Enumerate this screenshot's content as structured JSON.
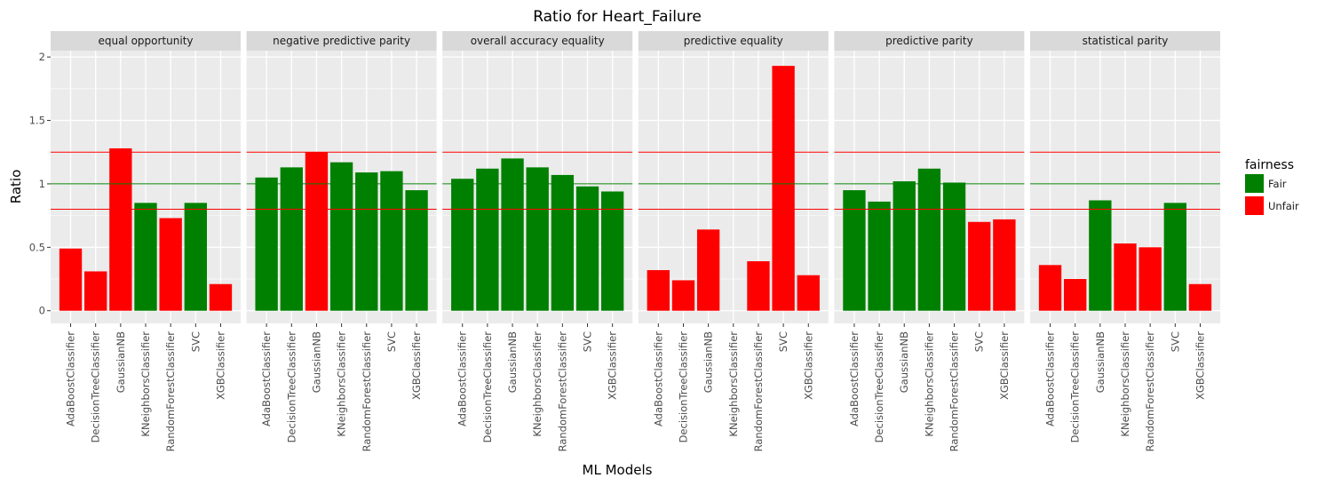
{
  "chart_data": {
    "type": "bar",
    "title": "Ratio for Heart_Failure",
    "xlabel": "ML Models",
    "ylabel": "Ratio",
    "ylim": [
      -0.1,
      2.05
    ],
    "yticks": [
      0,
      0.5,
      1,
      1.5,
      2
    ],
    "ytick_labels": [
      "0",
      "0.5",
      "1",
      "1.5",
      "2"
    ],
    "grid": true,
    "categories": [
      "AdaBoostClassifier",
      "DecisionTreeClassifier",
      "GaussianNB",
      "KNeighborsClassifier",
      "RandomForestClassifier",
      "SVC",
      "XGBClassifier"
    ],
    "reference_lines": [
      {
        "value": 1.25,
        "color": "#ff0000"
      },
      {
        "value": 1.0,
        "color": "#008000"
      },
      {
        "value": 0.8,
        "color": "#ff0000"
      }
    ],
    "legend": {
      "title": "fairness",
      "position": "right",
      "entries": [
        {
          "label": "Fair",
          "color": "#008000"
        },
        {
          "label": "Unfair",
          "color": "#ff0000"
        }
      ]
    },
    "panels": [
      {
        "name": "equal opportunity",
        "values": [
          0.49,
          0.31,
          1.28,
          0.85,
          0.73,
          0.85,
          0.21
        ],
        "fairness": [
          "Unfair",
          "Unfair",
          "Unfair",
          "Fair",
          "Unfair",
          "Fair",
          "Unfair"
        ]
      },
      {
        "name": "negative predictive parity",
        "values": [
          1.05,
          1.13,
          1.25,
          1.17,
          1.09,
          1.1,
          0.95
        ],
        "fairness": [
          "Fair",
          "Fair",
          "Unfair",
          "Fair",
          "Fair",
          "Fair",
          "Fair"
        ]
      },
      {
        "name": "overall accuracy equality",
        "values": [
          1.04,
          1.12,
          1.2,
          1.13,
          1.07,
          0.98,
          0.94
        ],
        "fairness": [
          "Fair",
          "Fair",
          "Fair",
          "Fair",
          "Fair",
          "Fair",
          "Fair"
        ]
      },
      {
        "name": "predictive equality",
        "values": [
          0.32,
          0.24,
          0.64,
          0.0,
          0.39,
          1.93,
          0.28
        ],
        "fairness": [
          "Unfair",
          "Unfair",
          "Unfair",
          "Unfair",
          "Unfair",
          "Unfair",
          "Unfair"
        ]
      },
      {
        "name": "predictive parity",
        "values": [
          0.95,
          0.86,
          1.02,
          1.12,
          1.01,
          0.7,
          0.72
        ],
        "fairness": [
          "Fair",
          "Fair",
          "Fair",
          "Fair",
          "Fair",
          "Unfair",
          "Unfair"
        ]
      },
      {
        "name": "statistical parity",
        "values": [
          0.36,
          0.25,
          0.87,
          0.53,
          0.5,
          0.85,
          0.21
        ],
        "fairness": [
          "Unfair",
          "Unfair",
          "Fair",
          "Unfair",
          "Unfair",
          "Fair",
          "Unfair"
        ]
      }
    ]
  }
}
